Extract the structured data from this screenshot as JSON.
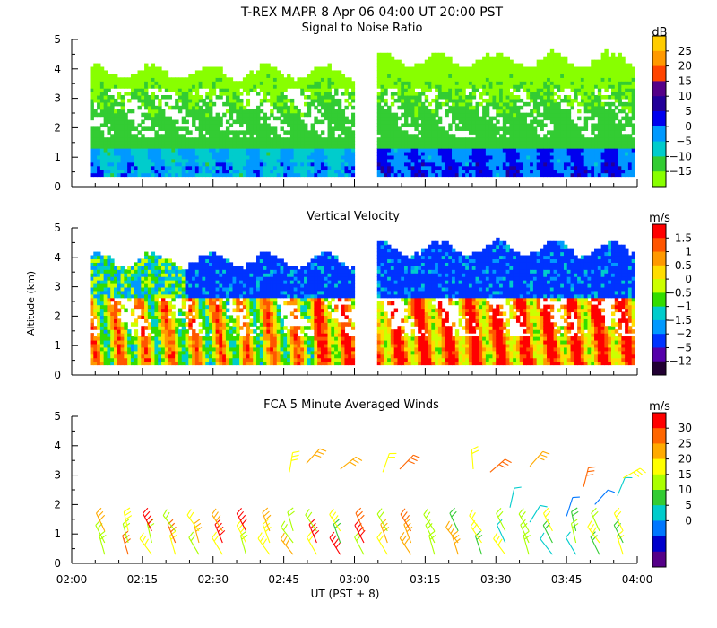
{
  "title": "T-REX  MAPR  8 Apr 06  04:00 UT  20:00  PST",
  "xlabel": "UT  (PST + 8)",
  "ylabel": "Altitude (km)",
  "x_ticks": [
    "02:00",
    "02:15",
    "02:30",
    "02:45",
    "03:00",
    "03:15",
    "03:30",
    "03:45",
    "04:00"
  ],
  "chart_data": [
    {
      "type": "heatmap",
      "title": "Signal to Noise Ratio",
      "units": "dB",
      "xlim": [
        2.0,
        4.0
      ],
      "ylim": [
        0,
        5
      ],
      "y_ticks": [
        "0",
        "1",
        "2",
        "3",
        "4",
        "5"
      ],
      "data_gap": [
        3.0,
        3.08
      ],
      "colorbar": {
        "labels": [
          "25",
          "20",
          "15",
          "10",
          "5",
          "0",
          "−5",
          "−10",
          "−15"
        ],
        "colors": [
          "#ffcc00",
          "#ff9900",
          "#ff4400",
          "#550088",
          "#220099",
          "#0000ee",
          "#0099ff",
          "#00cccc",
          "#33cc33",
          "#88ff00"
        ]
      }
    },
    {
      "type": "heatmap",
      "title": "Vertical Velocity",
      "units": "m/s",
      "xlim": [
        2.0,
        4.0
      ],
      "ylim": [
        0,
        5
      ],
      "y_ticks": [
        "0",
        "1",
        "2",
        "3",
        "4",
        "5"
      ],
      "data_gap": [
        3.0,
        3.08
      ],
      "colorbar": {
        "labels": [
          "1.5",
          "1",
          "0.5",
          "0",
          "−0.5",
          "−1",
          "−1.5",
          "−2",
          "−5",
          "−12"
        ],
        "colors": [
          "#ff0000",
          "#ff5500",
          "#ff9900",
          "#ffdd00",
          "#ccff00",
          "#33dd00",
          "#00cccc",
          "#0099ff",
          "#0033ff",
          "#5500aa",
          "#220033"
        ]
      }
    },
    {
      "type": "scatter",
      "title": "FCA 5 Minute Averaged Winds",
      "units": "m/s",
      "xlim": [
        2.0,
        4.0
      ],
      "ylim": [
        0,
        5
      ],
      "y_ticks": [
        "0",
        "1",
        "2",
        "3",
        "4",
        "5"
      ],
      "colorbar": {
        "labels": [
          "30",
          "25",
          "20",
          "15",
          "10",
          "5",
          "0"
        ],
        "colors": [
          "#ff0000",
          "#ff6600",
          "#ffaa00",
          "#ffff00",
          "#aaff00",
          "#33cc33",
          "#00cccc",
          "#0077ff",
          "#0000cc",
          "#550088"
        ]
      }
    }
  ]
}
